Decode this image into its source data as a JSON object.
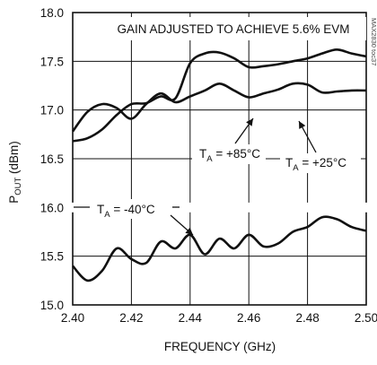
{
  "chart_data": {
    "type": "line",
    "title": "GAIN ADJUSTED TO ACHIEVE 5.6% EVM",
    "xlabel": "FREQUENCY (GHz)",
    "ylabel": {
      "main": "P",
      "sub": "OUT",
      "unit": " (dBm)"
    },
    "xlim": [
      2.4,
      2.5
    ],
    "ylim": [
      15.0,
      18.0
    ],
    "xticks": [
      "2.40",
      "2.42",
      "2.44",
      "2.46",
      "2.48",
      "2.50"
    ],
    "yticks": [
      "15.0",
      "15.5",
      "16.0",
      "16.5",
      "17.0",
      "17.5",
      "18.0"
    ],
    "axis_break": {
      "lower": 15.95,
      "upper": 16.05
    },
    "grid": true,
    "watermark": "MAX2830 toc37",
    "series": [
      {
        "name": "TA = +85°C",
        "x": [
          2.4,
          2.405,
          2.41,
          2.415,
          2.42,
          2.425,
          2.43,
          2.435,
          2.44,
          2.445,
          2.45,
          2.455,
          2.46,
          2.465,
          2.47,
          2.475,
          2.48,
          2.485,
          2.49,
          2.495,
          2.5
        ],
        "y": [
          16.68,
          16.71,
          16.8,
          16.95,
          17.06,
          17.07,
          17.14,
          17.12,
          17.48,
          17.58,
          17.59,
          17.53,
          17.44,
          17.45,
          17.47,
          17.5,
          17.53,
          17.58,
          17.62,
          17.58,
          17.55
        ]
      },
      {
        "name": "TA = +25°C",
        "x": [
          2.4,
          2.405,
          2.41,
          2.415,
          2.42,
          2.425,
          2.43,
          2.435,
          2.44,
          2.445,
          2.45,
          2.455,
          2.46,
          2.465,
          2.47,
          2.475,
          2.48,
          2.485,
          2.49,
          2.495,
          2.5
        ],
        "y": [
          16.78,
          16.98,
          17.06,
          17.02,
          16.91,
          17.06,
          17.17,
          17.08,
          17.14,
          17.2,
          17.27,
          17.2,
          17.13,
          17.17,
          17.21,
          17.27,
          17.26,
          17.18,
          17.19,
          17.2,
          17.2
        ]
      },
      {
        "name": "TA = -40°C",
        "x": [
          2.4,
          2.405,
          2.41,
          2.415,
          2.42,
          2.425,
          2.43,
          2.435,
          2.44,
          2.445,
          2.45,
          2.455,
          2.46,
          2.465,
          2.47,
          2.475,
          2.48,
          2.485,
          2.49,
          2.495,
          2.5
        ],
        "y": [
          15.4,
          15.25,
          15.35,
          15.58,
          15.47,
          15.43,
          15.65,
          15.58,
          15.72,
          15.52,
          15.68,
          15.58,
          15.72,
          15.6,
          15.63,
          15.75,
          15.8,
          15.9,
          15.88,
          15.8,
          15.76
        ]
      }
    ],
    "annotations": [
      {
        "main": "T",
        "sub": "A",
        "rest": " = +85°C"
      },
      {
        "main": "T",
        "sub": "A",
        "rest": " = +25°C"
      },
      {
        "main": "T",
        "sub": "A",
        "rest": " = -40°C"
      }
    ]
  }
}
